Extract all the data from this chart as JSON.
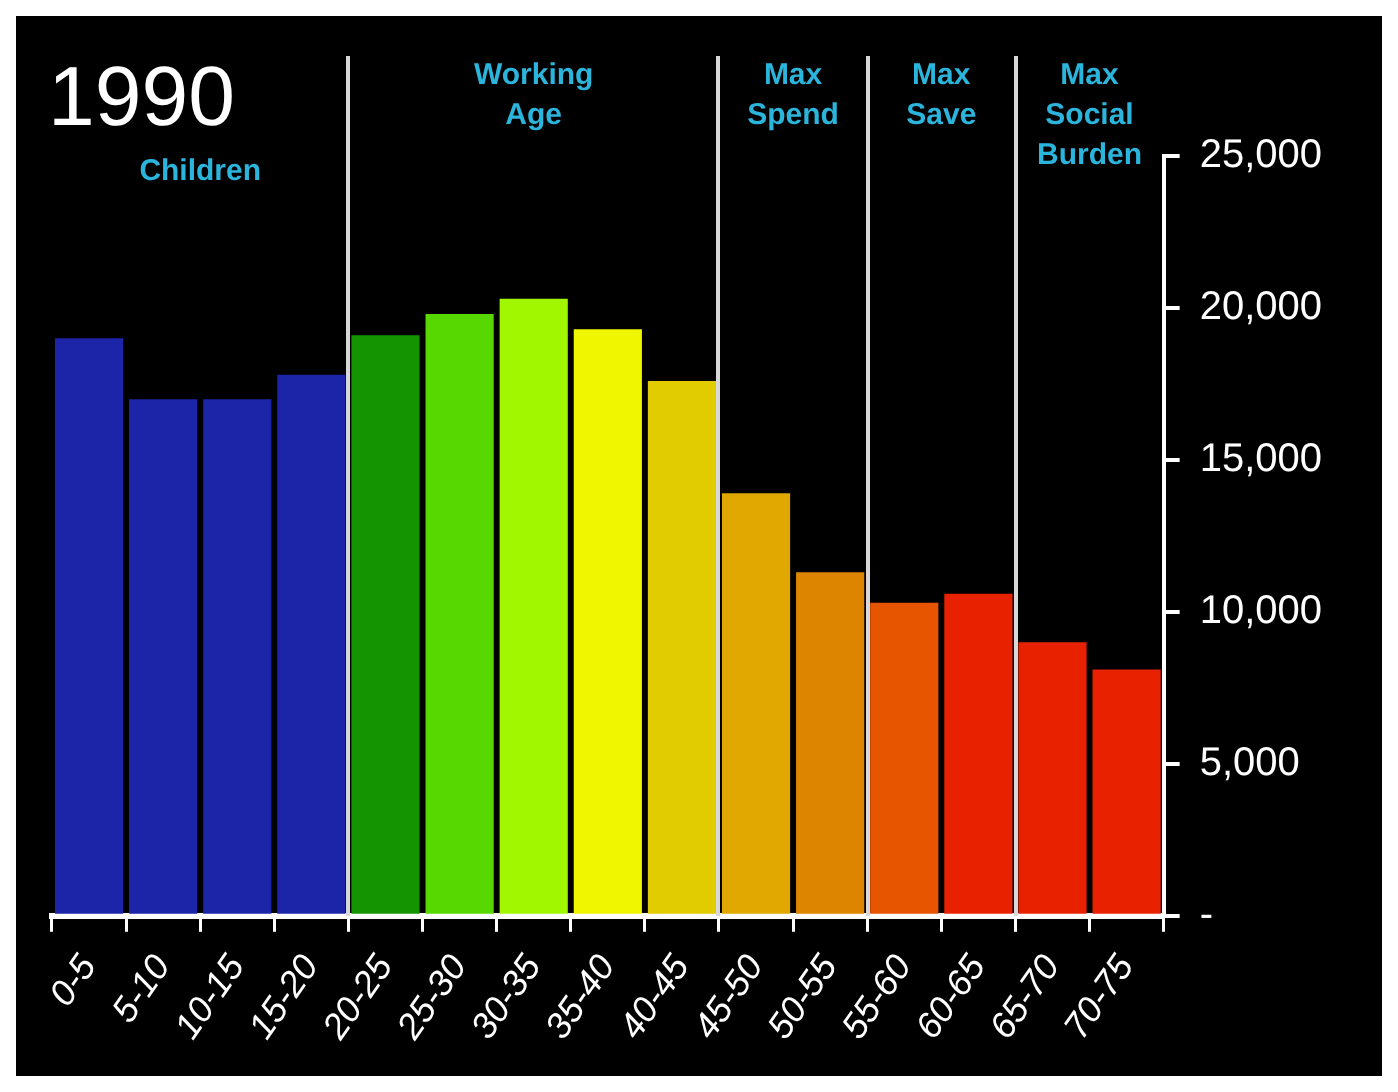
{
  "chart_data": {
    "type": "bar",
    "title": "1990",
    "categories": [
      "0-5",
      "5-10",
      "10-15",
      "15-20",
      "20-25",
      "25-30",
      "30-35",
      "35-40",
      "40-45",
      "45-50",
      "50-55",
      "55-60",
      "60-65",
      "65-70",
      "70-75"
    ],
    "values": [
      19000,
      17000,
      17000,
      17800,
      19100,
      19800,
      20300,
      19300,
      17600,
      13900,
      11300,
      10300,
      10600,
      9000,
      8100
    ],
    "colors": [
      "#1c25a8",
      "#1c25a8",
      "#1c25a8",
      "#1c25a8",
      "#149400",
      "#57d800",
      "#a0f700",
      "#f0f500",
      "#e0cc00",
      "#e0a800",
      "#dd8400",
      "#e85500",
      "#e82200",
      "#e82200",
      "#e82200"
    ],
    "ylim": [
      0,
      25000
    ],
    "yticks": [
      {
        "value": 0,
        "label": "-"
      },
      {
        "value": 5000,
        "label": "5,000"
      },
      {
        "value": 10000,
        "label": "10,000"
      },
      {
        "value": 15000,
        "label": "15,000"
      },
      {
        "value": 20000,
        "label": "20,000"
      },
      {
        "value": 25000,
        "label": "25,000"
      }
    ],
    "annotations": [
      "Children",
      "Working Age",
      "Max Spend",
      "Max Save",
      "Max Social Burden"
    ],
    "legend": false
  }
}
